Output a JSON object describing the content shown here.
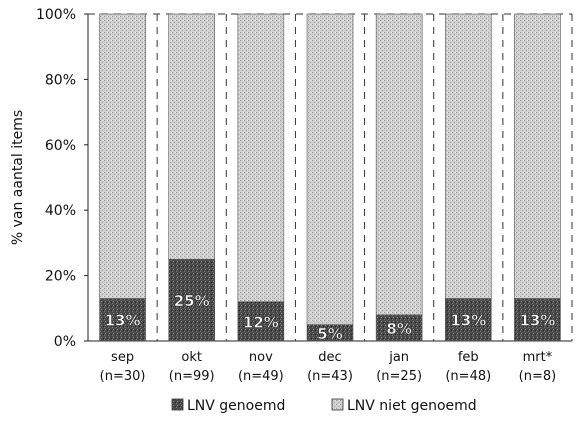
{
  "chart_data": {
    "type": "bar",
    "stacked": true,
    "percent_scale": true,
    "ylabel": "% van aantal items",
    "ylim": [
      0,
      100
    ],
    "yticks": [
      "0%",
      "20%",
      "40%",
      "60%",
      "80%",
      "100%"
    ],
    "categories": [
      "sep",
      "okt",
      "nov",
      "dec",
      "jan",
      "feb",
      "mrt*"
    ],
    "category_notes": [
      "(n=30)",
      "(n=99)",
      "(n=49)",
      "(n=43)",
      "(n=25)",
      "(n=48)",
      "(n=8)"
    ],
    "series": [
      {
        "name": "LNV genoemd",
        "values": [
          13,
          25,
          12,
          5,
          8,
          13,
          13
        ],
        "color": "#4a4a4a"
      },
      {
        "name": "LNV niet genoemd",
        "values": [
          87,
          75,
          88,
          95,
          92,
          87,
          87
        ],
        "color": "#c4c4c4"
      }
    ],
    "data_labels": [
      "13%",
      "25%",
      "12%",
      "5%",
      "8%",
      "13%",
      "13%"
    ],
    "legend_position": "bottom",
    "grid": false
  }
}
